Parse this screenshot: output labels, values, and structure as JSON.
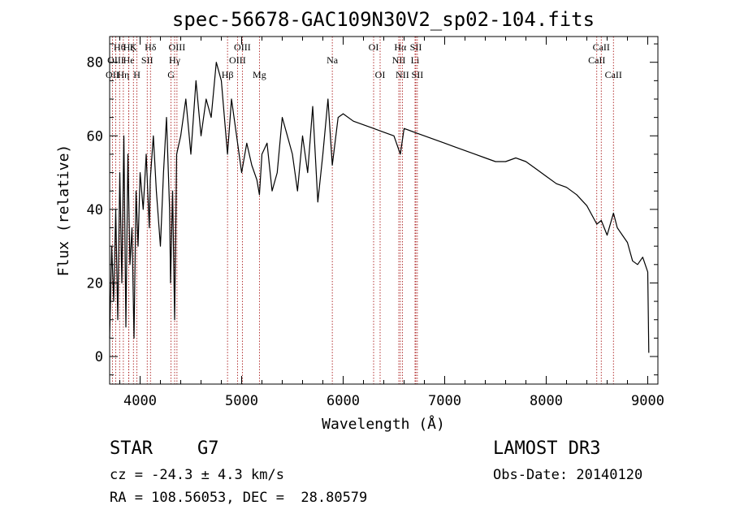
{
  "chart_data": {
    "type": "line",
    "title": "spec-56678-GAC109N30V2_sp02-104.fits",
    "xlabel": "Wavelength (Å)",
    "ylabel": "Flux (relative)",
    "xlim": [
      3700,
      9100
    ],
    "ylim": [
      -7.5,
      87
    ],
    "x_ticks": [
      4000,
      5000,
      6000,
      7000,
      8000,
      9000
    ],
    "y_ticks": [
      0,
      20,
      40,
      60,
      80
    ],
    "x_tick_labels": [
      "4000",
      "5000",
      "6000",
      "7000",
      "8000",
      "9000"
    ],
    "y_tick_labels": [
      "0",
      "20",
      "40",
      "60",
      "80"
    ],
    "series": [
      {
        "name": "spectrum",
        "x": [
          3700,
          3720,
          3740,
          3760,
          3780,
          3800,
          3820,
          3840,
          3860,
          3880,
          3900,
          3920,
          3940,
          3960,
          3980,
          4000,
          4030,
          4060,
          4090,
          4100,
          4130,
          4160,
          4200,
          4230,
          4260,
          4290,
          4300,
          4320,
          4340,
          4360,
          4400,
          4450,
          4500,
          4550,
          4600,
          4650,
          4700,
          4750,
          4800,
          4861,
          4900,
          4950,
          5000,
          5050,
          5100,
          5150,
          5175,
          5200,
          5250,
          5300,
          5350,
          5400,
          5450,
          5500,
          5550,
          5600,
          5650,
          5700,
          5750,
          5800,
          5850,
          5893,
          5950,
          6000,
          6100,
          6200,
          6300,
          6400,
          6500,
          6563,
          6600,
          6700,
          6800,
          6900,
          7000,
          7100,
          7200,
          7300,
          7400,
          7500,
          7600,
          7700,
          7800,
          7900,
          8000,
          8100,
          8200,
          8300,
          8400,
          8498,
          8542,
          8600,
          8662,
          8700,
          8800,
          8850,
          8900,
          8950,
          9000,
          9010
        ],
        "y": [
          5,
          30,
          15,
          40,
          10,
          50,
          20,
          60,
          8,
          55,
          25,
          35,
          5,
          45,
          30,
          50,
          40,
          55,
          35,
          48,
          60,
          45,
          30,
          50,
          65,
          40,
          20,
          45,
          10,
          55,
          60,
          70,
          55,
          75,
          60,
          70,
          65,
          80,
          75,
          55,
          70,
          60,
          50,
          58,
          52,
          48,
          44,
          55,
          58,
          45,
          50,
          65,
          60,
          55,
          45,
          60,
          50,
          68,
          42,
          55,
          70,
          52,
          65,
          66,
          64,
          63,
          62,
          61,
          60,
          55,
          62,
          61,
          60,
          59,
          58,
          57,
          56,
          55,
          54,
          53,
          53,
          54,
          53,
          51,
          49,
          47,
          46,
          44,
          41,
          36,
          37,
          33,
          39,
          35,
          31,
          26,
          25,
          27,
          23,
          1
        ]
      }
    ],
    "line_markers": [
      {
        "label": "OII",
        "x": 3727,
        "row": 3
      },
      {
        "label": "Hθ",
        "x": 3798,
        "row": 1
      },
      {
        "label": "OIII",
        "x": 3760,
        "row": 2
      },
      {
        "label": "Hη",
        "x": 3835,
        "row": 3
      },
      {
        "label": "He",
        "x": 3889,
        "row": 2
      },
      {
        "label": "Hζ",
        "x": 3889,
        "row": 1
      },
      {
        "label": "K",
        "x": 3934,
        "row": 1
      },
      {
        "label": "H",
        "x": 3969,
        "row": 3
      },
      {
        "label": "SII",
        "x": 4070,
        "row": 2
      },
      {
        "label": "Hδ",
        "x": 4102,
        "row": 1
      },
      {
        "label": "G",
        "x": 4305,
        "row": 3
      },
      {
        "label": "Hγ",
        "x": 4340,
        "row": 2
      },
      {
        "label": "OIII",
        "x": 4363,
        "row": 1
      },
      {
        "label": "Hβ",
        "x": 4861,
        "row": 3
      },
      {
        "label": "OIII",
        "x": 4959,
        "row": 2
      },
      {
        "label": "OIII",
        "x": 5007,
        "row": 1
      },
      {
        "label": "Mg",
        "x": 5175,
        "row": 3
      },
      {
        "label": "Na",
        "x": 5893,
        "row": 2
      },
      {
        "label": "OI",
        "x": 6300,
        "row": 1
      },
      {
        "label": "OI",
        "x": 6364,
        "row": 3
      },
      {
        "label": "NII",
        "x": 6548,
        "row": 2
      },
      {
        "label": "Hα",
        "x": 6563,
        "row": 1
      },
      {
        "label": "NII",
        "x": 6583,
        "row": 3
      },
      {
        "label": "Li",
        "x": 6708,
        "row": 2
      },
      {
        "label": "SII",
        "x": 6716,
        "row": 1
      },
      {
        "label": "SII",
        "x": 6731,
        "row": 3
      },
      {
        "label": "CaII",
        "x": 8498,
        "row": 2
      },
      {
        "label": "CaII",
        "x": 8542,
        "row": 1
      },
      {
        "label": "CaII",
        "x": 8662,
        "row": 3
      }
    ]
  },
  "info": {
    "object_type": "STAR",
    "subclass": "G7",
    "cz": "cz = -24.3 ± 4.3 km/s",
    "coords": "RA = 108.56053, DEC =  28.80579",
    "survey": "LAMOST DR3",
    "obs_date": "Obs-Date: 20140120"
  },
  "colors": {
    "line": "#000000",
    "marker": "#a00000",
    "axis": "#000000"
  }
}
